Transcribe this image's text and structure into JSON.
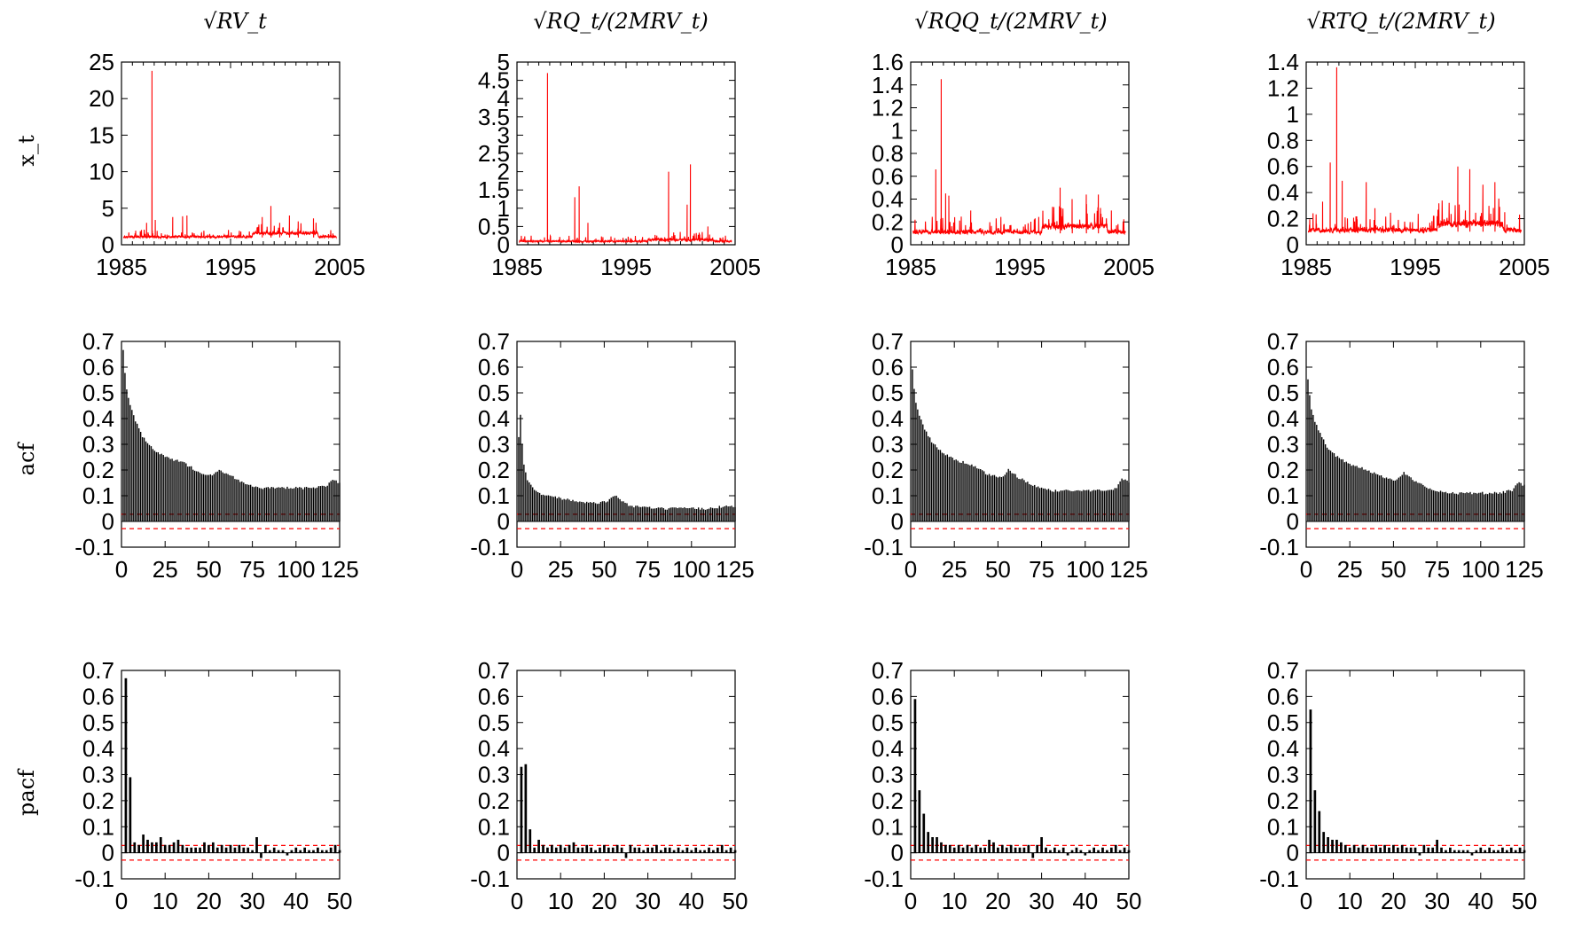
{
  "column_titles": [
    "√RV_t",
    "√RQ_t/(2MRV_t)",
    "√RQQ_t/(2MRV_t)",
    "√RTQ_t/(2MRV_t)"
  ],
  "row_labels": [
    "x_t",
    "acf",
    "pacf"
  ],
  "colors": {
    "series": "#ff0000",
    "bars": "#000000",
    "band": "#ff0000"
  },
  "chart_data": [
    {
      "type": "line",
      "row": 0,
      "col": 0,
      "title": "√RV_t",
      "ylabel": "x_t",
      "xlim": [
        1985,
        2005
      ],
      "ylim": [
        0,
        25
      ],
      "xticks": [
        1985,
        1995,
        2005
      ],
      "yticks": [
        0,
        5,
        10,
        15,
        20,
        25
      ],
      "base_level": 1.0,
      "noise": 0.45,
      "high_period": [
        1997,
        2003
      ],
      "spikes": [
        [
          1987.8,
          23.8
        ],
        [
          1988.1,
          3.4
        ],
        [
          1987.3,
          3.0
        ],
        [
          1989.7,
          3.8
        ],
        [
          1990.6,
          3.9
        ],
        [
          1991.0,
          4.0
        ],
        [
          1997.9,
          3.8
        ],
        [
          1998.7,
          5.3
        ],
        [
          1999.5,
          3.0
        ],
        [
          2000.4,
          4.0
        ],
        [
          2001.2,
          3.2
        ],
        [
          2002.6,
          3.6
        ]
      ]
    },
    {
      "type": "line",
      "row": 0,
      "col": 1,
      "title": "√RQ_t/(2MRV_t)",
      "xlim": [
        1985,
        2005
      ],
      "ylim": [
        0,
        5
      ],
      "xticks": [
        1985,
        1995,
        2005
      ],
      "yticks": [
        0,
        0.5,
        1,
        1.5,
        2,
        2.5,
        3,
        3.5,
        4,
        4.5,
        5
      ],
      "base_level": 0.08,
      "noise": 0.07,
      "high_period": [
        1997,
        2003
      ],
      "spikes": [
        [
          1987.8,
          4.7
        ],
        [
          1990.3,
          1.3
        ],
        [
          1990.7,
          1.6
        ],
        [
          1991.5,
          0.6
        ],
        [
          1998.9,
          2.0
        ],
        [
          2000.9,
          2.2
        ],
        [
          2000.6,
          1.1
        ],
        [
          2002.5,
          0.5
        ]
      ]
    },
    {
      "type": "line",
      "row": 0,
      "col": 2,
      "title": "√RQQ_t/(2MRV_t)",
      "xlim": [
        1985,
        2005
      ],
      "ylim": [
        0,
        1.6
      ],
      "xticks": [
        1985,
        1995,
        2005
      ],
      "yticks": [
        0,
        0.2,
        0.4,
        0.6,
        0.8,
        1,
        1.2,
        1.4,
        1.6
      ],
      "base_level": 0.1,
      "noise": 0.06,
      "high_period": [
        1997,
        2003
      ],
      "spikes": [
        [
          1987.8,
          1.45
        ],
        [
          1987.3,
          0.66
        ],
        [
          1988.2,
          0.45
        ],
        [
          1988.5,
          0.43
        ],
        [
          1990.5,
          0.3
        ],
        [
          1998.7,
          0.5
        ],
        [
          1999.8,
          0.4
        ],
        [
          2001.1,
          0.44
        ],
        [
          2002.2,
          0.44
        ],
        [
          2003.4,
          0.3
        ]
      ]
    },
    {
      "type": "line",
      "row": 0,
      "col": 3,
      "title": "√RTQ_t/(2MRV_t)",
      "xlim": [
        1985,
        2005
      ],
      "ylim": [
        0,
        1.4
      ],
      "xticks": [
        1985,
        1995,
        2005
      ],
      "yticks": [
        0,
        0.2,
        0.4,
        0.6,
        0.8,
        1,
        1.2,
        1.4
      ],
      "base_level": 0.1,
      "noise": 0.06,
      "high_period": [
        1997,
        2003
      ],
      "spikes": [
        [
          1987.8,
          1.36
        ],
        [
          1987.2,
          0.63
        ],
        [
          1988.3,
          0.49
        ],
        [
          1986.5,
          0.33
        ],
        [
          1990.5,
          0.48
        ],
        [
          1991.3,
          0.28
        ],
        [
          1998.9,
          0.6
        ],
        [
          2000.0,
          0.58
        ],
        [
          2001.2,
          0.46
        ],
        [
          2002.3,
          0.48
        ],
        [
          2003.2,
          0.25
        ]
      ]
    },
    {
      "type": "bar",
      "row": 1,
      "col": 0,
      "ylabel": "acf",
      "xlim": [
        0,
        125
      ],
      "ylim": [
        -0.1,
        0.7
      ],
      "xticks": [
        0,
        25,
        50,
        75,
        100,
        125
      ],
      "yticks": [
        -0.1,
        0,
        0.1,
        0.2,
        0.3,
        0.4,
        0.5,
        0.6,
        0.7
      ],
      "conf_band": [
        -0.028,
        0.028
      ],
      "curve_lags": [
        1,
        2,
        3,
        5,
        8,
        12,
        18,
        25,
        35,
        45,
        52,
        56,
        62,
        70,
        80,
        90,
        100,
        110,
        118,
        121,
        125
      ],
      "curve_values": [
        0.67,
        0.58,
        0.51,
        0.45,
        0.39,
        0.33,
        0.28,
        0.25,
        0.23,
        0.19,
        0.18,
        0.2,
        0.18,
        0.15,
        0.13,
        0.13,
        0.13,
        0.13,
        0.14,
        0.16,
        0.15
      ]
    },
    {
      "type": "bar",
      "row": 1,
      "col": 1,
      "xlim": [
        0,
        125
      ],
      "ylim": [
        -0.1,
        0.7
      ],
      "xticks": [
        0,
        25,
        50,
        75,
        100,
        125
      ],
      "yticks": [
        -0.1,
        0,
        0.1,
        0.2,
        0.3,
        0.4,
        0.5,
        0.6,
        0.7
      ],
      "conf_band": [
        -0.028,
        0.028
      ],
      "curve_lags": [
        1,
        2,
        3,
        4,
        6,
        10,
        15,
        25,
        35,
        45,
        52,
        56,
        65,
        80,
        95,
        110,
        120,
        125
      ],
      "curve_values": [
        0.33,
        0.41,
        0.3,
        0.22,
        0.16,
        0.12,
        0.1,
        0.09,
        0.08,
        0.07,
        0.08,
        0.1,
        0.06,
        0.05,
        0.05,
        0.05,
        0.06,
        0.06
      ]
    },
    {
      "type": "bar",
      "row": 1,
      "col": 2,
      "xlim": [
        0,
        125
      ],
      "ylim": [
        -0.1,
        0.7
      ],
      "xticks": [
        0,
        25,
        50,
        75,
        100,
        125
      ],
      "yticks": [
        -0.1,
        0,
        0.1,
        0.2,
        0.3,
        0.4,
        0.5,
        0.6,
        0.7
      ],
      "conf_band": [
        -0.028,
        0.028
      ],
      "curve_lags": [
        1,
        2,
        3,
        5,
        8,
        12,
        18,
        25,
        35,
        45,
        52,
        56,
        62,
        70,
        80,
        90,
        100,
        110,
        118,
        121,
        125
      ],
      "curve_values": [
        0.59,
        0.52,
        0.46,
        0.41,
        0.36,
        0.31,
        0.27,
        0.24,
        0.22,
        0.18,
        0.17,
        0.2,
        0.17,
        0.14,
        0.12,
        0.12,
        0.12,
        0.12,
        0.13,
        0.17,
        0.15
      ]
    },
    {
      "type": "bar",
      "row": 1,
      "col": 3,
      "xlim": [
        0,
        125
      ],
      "ylim": [
        -0.1,
        0.7
      ],
      "xticks": [
        0,
        25,
        50,
        75,
        100,
        125
      ],
      "yticks": [
        -0.1,
        0,
        0.1,
        0.2,
        0.3,
        0.4,
        0.5,
        0.6,
        0.7
      ],
      "conf_band": [
        -0.028,
        0.028
      ],
      "curve_lags": [
        1,
        2,
        3,
        5,
        8,
        12,
        18,
        25,
        35,
        45,
        52,
        56,
        62,
        70,
        80,
        90,
        100,
        110,
        118,
        121,
        125
      ],
      "curve_values": [
        0.55,
        0.49,
        0.44,
        0.39,
        0.34,
        0.29,
        0.25,
        0.22,
        0.2,
        0.17,
        0.16,
        0.19,
        0.16,
        0.13,
        0.11,
        0.11,
        0.11,
        0.11,
        0.12,
        0.15,
        0.14
      ]
    },
    {
      "type": "bar",
      "row": 2,
      "col": 0,
      "ylabel": "pacf",
      "xlim": [
        0,
        50
      ],
      "ylim": [
        -0.1,
        0.7
      ],
      "xticks": [
        0,
        10,
        20,
        30,
        40,
        50
      ],
      "yticks": [
        -0.1,
        0,
        0.1,
        0.2,
        0.3,
        0.4,
        0.5,
        0.6,
        0.7
      ],
      "conf_band": [
        -0.028,
        0.028
      ],
      "values": [
        0.67,
        0.29,
        0.04,
        0.03,
        0.07,
        0.05,
        0.04,
        0.04,
        0.06,
        0.03,
        0.03,
        0.04,
        0.05,
        0.03,
        0.02,
        0.02,
        0.02,
        0.02,
        0.04,
        0.03,
        0.04,
        0.02,
        0.03,
        0.02,
        0.03,
        0.02,
        0.03,
        0.02,
        0.02,
        0.01,
        0.06,
        -0.02,
        0.03,
        0.01,
        0.02,
        0.01,
        0.01,
        -0.01,
        0.01,
        0.02,
        0.01,
        0.02,
        0.01,
        0.01,
        0.02,
        0.01,
        0.01,
        0.02,
        0.03,
        0.01
      ]
    },
    {
      "type": "bar",
      "row": 2,
      "col": 1,
      "xlim": [
        0,
        50
      ],
      "ylim": [
        -0.1,
        0.7
      ],
      "xticks": [
        0,
        10,
        20,
        30,
        40,
        50
      ],
      "yticks": [
        -0.1,
        0,
        0.1,
        0.2,
        0.3,
        0.4,
        0.5,
        0.6,
        0.7
      ],
      "conf_band": [
        -0.028,
        0.028
      ],
      "values": [
        0.33,
        0.34,
        0.09,
        0.02,
        0.05,
        0.03,
        0.02,
        0.03,
        0.02,
        0.03,
        0.02,
        0.03,
        0.04,
        0.02,
        0.02,
        0.03,
        0.02,
        0.01,
        0.02,
        0.03,
        0.02,
        0.02,
        0.03,
        0.02,
        -0.02,
        0.03,
        0.02,
        0.02,
        0.01,
        0.02,
        0.02,
        0.03,
        0.01,
        0.02,
        0.02,
        0.01,
        0.02,
        0.01,
        0.02,
        0.01,
        0.02,
        0.01,
        0.01,
        0.02,
        0.01,
        0.02,
        0.03,
        0.01,
        0.02,
        0.01
      ]
    },
    {
      "type": "bar",
      "row": 2,
      "col": 2,
      "xlim": [
        0,
        50
      ],
      "ylim": [
        -0.1,
        0.7
      ],
      "xticks": [
        0,
        10,
        20,
        30,
        40,
        50
      ],
      "yticks": [
        -0.1,
        0,
        0.1,
        0.2,
        0.3,
        0.4,
        0.5,
        0.6,
        0.7
      ],
      "conf_band": [
        -0.028,
        0.028
      ],
      "values": [
        0.59,
        0.24,
        0.15,
        0.08,
        0.06,
        0.06,
        0.04,
        0.03,
        0.03,
        0.02,
        0.03,
        0.02,
        0.03,
        0.02,
        0.03,
        0.02,
        0.02,
        0.05,
        0.04,
        0.02,
        0.03,
        0.02,
        0.03,
        0.02,
        0.02,
        0.02,
        0.03,
        -0.02,
        0.03,
        0.06,
        0.02,
        0.01,
        0.02,
        0.01,
        0.02,
        -0.01,
        0.01,
        0.02,
        0.01,
        -0.01,
        0.01,
        0.02,
        0.01,
        0.02,
        0.01,
        0.02,
        0.03,
        0.01,
        0.02,
        0.01
      ]
    },
    {
      "type": "bar",
      "row": 2,
      "col": 3,
      "xlim": [
        0,
        50
      ],
      "ylim": [
        -0.1,
        0.7
      ],
      "xticks": [
        0,
        10,
        20,
        30,
        40,
        50
      ],
      "yticks": [
        -0.1,
        0,
        0.1,
        0.2,
        0.3,
        0.4,
        0.5,
        0.6,
        0.7
      ],
      "conf_band": [
        -0.028,
        0.028
      ],
      "values": [
        0.55,
        0.24,
        0.16,
        0.08,
        0.06,
        0.05,
        0.05,
        0.04,
        0.03,
        0.02,
        0.03,
        0.02,
        0.03,
        0.02,
        0.02,
        0.03,
        0.02,
        0.03,
        0.02,
        0.03,
        0.02,
        0.03,
        0.02,
        0.02,
        0.02,
        -0.01,
        0.03,
        0.02,
        0.02,
        0.05,
        0.02,
        0.01,
        0.02,
        0.01,
        0.01,
        0.01,
        0.01,
        -0.01,
        0.01,
        0.02,
        0.01,
        0.02,
        0.01,
        0.01,
        0.02,
        0.01,
        0.02,
        0.01,
        0.02,
        0.01
      ]
    }
  ]
}
